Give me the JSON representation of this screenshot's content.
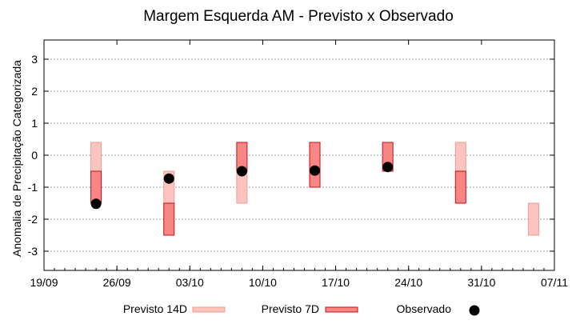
{
  "chart_data": {
    "type": "errorbar-range",
    "title": "Margem Esquerda AM - Previsto x Observado",
    "xlabel": "",
    "ylabel": "Anomalia de Precipitação Categorizada",
    "ylim": [
      -3.6,
      3.6
    ],
    "y_ticks": [
      3,
      2,
      1,
      0,
      -1,
      -2,
      -3
    ],
    "y_tick_labels": [
      "3",
      "2",
      "1",
      "0",
      "-1",
      "-2",
      "-3"
    ],
    "x_range_days": [
      0,
      49
    ],
    "x_ticks": [
      {
        "day": 0,
        "label": "19/09"
      },
      {
        "day": 7,
        "label": "26/09"
      },
      {
        "day": 14,
        "label": "03/10"
      },
      {
        "day": 21,
        "label": "10/10"
      },
      {
        "day": 28,
        "label": "17/10"
      },
      {
        "day": 35,
        "label": "24/10"
      },
      {
        "day": 42,
        "label": "31/10"
      },
      {
        "day": 49,
        "label": "07/11"
      }
    ],
    "grid": true,
    "legend_position": "bottom",
    "series": [
      {
        "name": "Previsto 14D",
        "kind": "range",
        "fill": "#fbc4be",
        "stroke": "#f29b93",
        "points": [
          {
            "day": 5,
            "low": -0.5,
            "high": 0.4
          },
          {
            "day": 12,
            "low": -1.5,
            "high": -0.5
          },
          {
            "day": 19,
            "low": -1.5,
            "high": -0.5
          },
          {
            "day": 40,
            "low": -0.5,
            "high": 0.4
          },
          {
            "day": 47,
            "low": -2.5,
            "high": -1.5
          }
        ]
      },
      {
        "name": "Previsto 7D",
        "kind": "range",
        "fill": "#f88682",
        "stroke": "#c0101a",
        "points": [
          {
            "day": 5,
            "low": -1.5,
            "high": -0.5
          },
          {
            "day": 12,
            "low": -2.5,
            "high": -1.5
          },
          {
            "day": 19,
            "low": -0.5,
            "high": 0.4
          },
          {
            "day": 26,
            "low": -1.0,
            "high": 0.4
          },
          {
            "day": 33,
            "low": -0.5,
            "high": 0.4
          },
          {
            "day": 40,
            "low": -1.5,
            "high": -0.5
          }
        ]
      },
      {
        "name": "Observado",
        "kind": "point",
        "fill": "#000000",
        "points": [
          {
            "day": 5,
            "value": -1.52
          },
          {
            "day": 12,
            "value": -0.73
          },
          {
            "day": 19,
            "value": -0.5
          },
          {
            "day": 26,
            "value": -0.48
          },
          {
            "day": 33,
            "value": -0.37
          }
        ]
      }
    ]
  }
}
